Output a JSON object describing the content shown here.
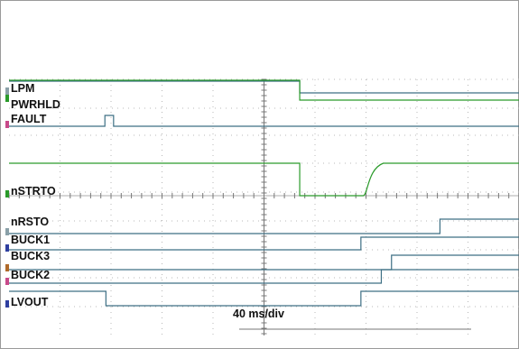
{
  "chart_data": {
    "type": "line",
    "title": "",
    "timebase_label": "40 ms/div",
    "x_divisions": 10,
    "grid": "dotted",
    "colors": {
      "green": "#2a9a2a",
      "blue": "#3d6f84"
    },
    "series": [
      {
        "name": "LPM",
        "color": "#3d6f84",
        "marker": "#8aa0a8",
        "level_div": [
          0,
          0.6
        ],
        "steps": [
          [
            0,
            1
          ],
          [
            5.7,
            0
          ]
        ]
      },
      {
        "name": "PWRHLD",
        "color": "#2a9a2a",
        "marker": "#2a9a2a",
        "level_div": [
          0,
          0.7
        ],
        "steps": [
          [
            0,
            1
          ],
          [
            5.7,
            0
          ]
        ]
      },
      {
        "name": "FAULT",
        "color": "#3d6f84",
        "marker": "#c84a8a",
        "level_div": [
          0,
          0.3
        ],
        "steps": [
          [
            0,
            0
          ],
          [
            1.88,
            1
          ],
          [
            2.05,
            0
          ]
        ]
      },
      {
        "name": "nSTRTO",
        "color": "#2a9a2a",
        "marker": "#2a9a2a",
        "level_div": [
          0,
          0.9
        ],
        "steps": [
          [
            0,
            1
          ],
          [
            5.7,
            0
          ],
          [
            6.95,
            1
          ]
        ],
        "recovery": true
      },
      {
        "name": "nRSTO",
        "color": "#3d6f84",
        "marker": "#8aa0a8",
        "level_div": [
          0,
          0.15
        ],
        "steps": [
          [
            0,
            0
          ],
          [
            8.45,
            1
          ]
        ]
      },
      {
        "name": "BUCK1",
        "color": "#3d6f84",
        "marker": "#2f3fa0",
        "level_div": [
          0,
          0.2
        ],
        "steps": [
          [
            0,
            0
          ],
          [
            6.9,
            1
          ]
        ]
      },
      {
        "name": "BUCK3",
        "color": "#3d6f84",
        "marker": "#b06a2a",
        "level_div": [
          0,
          0.2
        ],
        "steps": [
          [
            0,
            0
          ],
          [
            7.5,
            1
          ]
        ]
      },
      {
        "name": "BUCK2",
        "color": "#3d6f84",
        "marker": "#c84a8a",
        "level_div": [
          0,
          0.2
        ],
        "steps": [
          [
            0,
            0
          ],
          [
            7.3,
            1
          ]
        ]
      },
      {
        "name": "LVOUT",
        "color": "#3d6f84",
        "marker": "#2f3fa0",
        "level_div": [
          0,
          0.3
        ],
        "steps": [
          [
            0,
            1
          ],
          [
            1.9,
            0
          ],
          [
            6.9,
            1
          ]
        ]
      }
    ]
  }
}
